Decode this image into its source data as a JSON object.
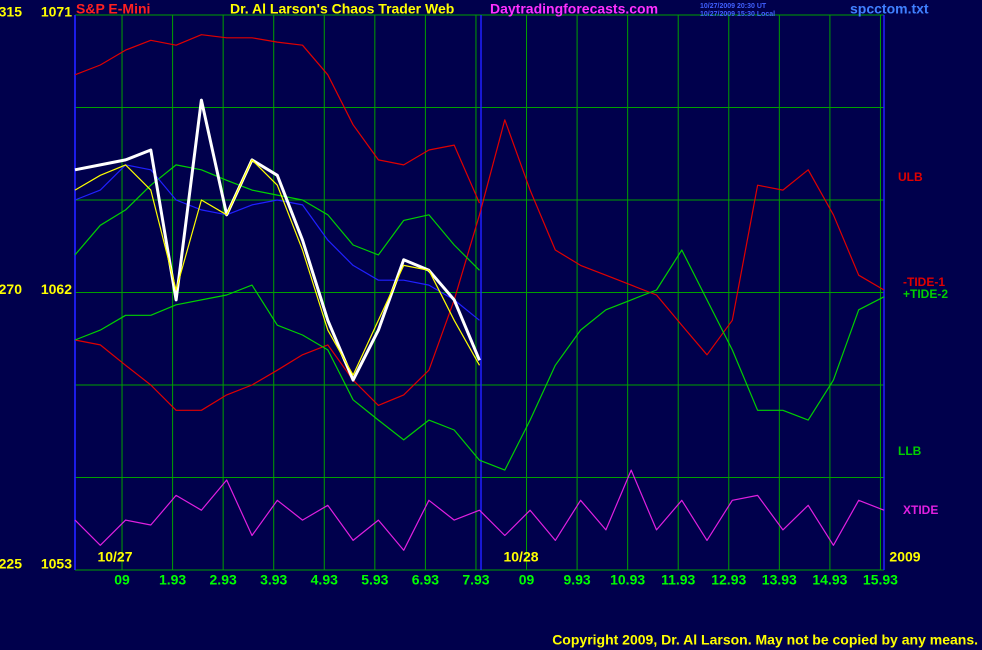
{
  "header": {
    "symbol": "S&P E-Mini",
    "title": "Dr. Al Larson's Chaos Trader Web",
    "site": "Daytradingforecasts.com",
    "timestamp_ut": "10/27/2009 20:30 UT",
    "timestamp_local": "10/27/2009 15:30 Local",
    "file": "spcctom.txt"
  },
  "footer": "Copyright 2009, Dr. Al Larson. May not be copied by any means.",
  "chart_data": {
    "type": "line",
    "x": [
      0,
      0.5,
      1,
      1.5,
      2,
      2.5,
      3,
      3.5,
      4,
      4.5,
      5,
      5.5,
      6,
      6.5,
      7,
      7.5,
      8,
      8.5,
      9,
      9.5,
      10,
      10.5,
      11,
      11.5,
      12,
      12.5,
      13,
      13.5,
      14,
      14.5,
      15,
      15.5,
      16
    ],
    "xlim": [
      0,
      16
    ],
    "xticks": [
      {
        "value": 0.93,
        "label": "09"
      },
      1.93,
      2.93,
      3.93,
      4.93,
      5.93,
      6.93,
      7.93,
      {
        "value": 8.93,
        "label": "09"
      },
      9.93,
      10.93,
      11.93,
      12.93,
      13.93,
      14.93,
      15.93
    ],
    "dates": [
      {
        "value": 0,
        "label": "10/27"
      },
      {
        "value": 8.03,
        "label": "10/28"
      }
    ],
    "year_label": "2009",
    "ylim": [
      225,
      315
    ],
    "yticks": [
      225,
      270,
      315
    ],
    "ygrid": [
      240,
      255,
      285,
      300
    ],
    "y2lim": [
      1053,
      1071
    ],
    "y2ticks": [
      1053,
      1062,
      1071
    ],
    "grid": true,
    "series": [
      {
        "name": "ULB",
        "color": "#e00000",
        "values": [
          305.3,
          306.9,
          309.3,
          310.9,
          310.1,
          311.8,
          311.3,
          311.3,
          310.6,
          310.1,
          305.3,
          297.2,
          291.5,
          290.7,
          293.1,
          293.9,
          284.5,
          null,
          null,
          null,
          null,
          null,
          null,
          null,
          null,
          null,
          null,
          null,
          null,
          null,
          null,
          null,
          null
        ]
      },
      {
        "name": "-TIDE-1",
        "color": "#e00000",
        "values": [
          262.3,
          261.5,
          258.2,
          255.0,
          250.9,
          250.9,
          253.4,
          255.0,
          257.4,
          259.9,
          261.5,
          255.8,
          251.7,
          253.4,
          257.4,
          268.8,
          282.6,
          298.0,
          286.6,
          276.9,
          274.4,
          272.8,
          271.2,
          269.6,
          264.7,
          259.9,
          265.5,
          287.4,
          286.6,
          289.9,
          282.6,
          272.8,
          270.4
        ]
      },
      {
        "name": "+TIDE-2",
        "color": "#00d000",
        "values": [
          262.3,
          263.9,
          266.3,
          266.3,
          268.0,
          268.8,
          269.6,
          271.2,
          264.7,
          263.1,
          260.7,
          252.6,
          249.3,
          246.1,
          249.3,
          247.7,
          242.8,
          241.2,
          249.3,
          258.2,
          263.9,
          267.2,
          268.8,
          270.4,
          276.9,
          268.8,
          260.7,
          250.9,
          250.9,
          249.3,
          255.8,
          267.2,
          269.3
        ]
      },
      {
        "name": "LLB",
        "color": "#00d000",
        "values": [
          276.1,
          280.9,
          283.4,
          287.4,
          290.7,
          289.9,
          288.2,
          286.6,
          285.8,
          285.0,
          282.6,
          277.7,
          276.1,
          281.7,
          282.6,
          277.7,
          273.6,
          null,
          null,
          null,
          null,
          null,
          null,
          null,
          null,
          null,
          null,
          null,
          null,
          null,
          null,
          null,
          null
        ]
      },
      {
        "name": "XTIDE",
        "color": "#e020e0",
        "values": [
          233.1,
          229.0,
          233.1,
          232.3,
          237.1,
          234.7,
          239.6,
          230.6,
          236.3,
          233.1,
          235.5,
          229.8,
          233.1,
          228.2,
          236.3,
          233.1,
          234.7,
          230.6,
          234.7,
          229.8,
          236.3,
          231.5,
          241.2,
          231.5,
          236.3,
          229.8,
          236.3,
          237.1,
          231.5,
          235.5,
          229.0,
          236.3,
          234.7
        ]
      },
      {
        "color": "#2020ff",
        "values": [
          285.0,
          286.6,
          290.7,
          289.9,
          285.0,
          283.4,
          282.6,
          284.2,
          285.0,
          284.2,
          278.5,
          274.4,
          272.0,
          272.0,
          271.2,
          268.8,
          265.5,
          null,
          null,
          null,
          null,
          null,
          null,
          null,
          null,
          null,
          null,
          null,
          null,
          null,
          null,
          null,
          null
        ]
      },
      {
        "color": "#ffffff",
        "values": [
          289.9,
          290.7,
          291.5,
          293.1,
          268.8,
          301.2,
          282.6,
          291.5,
          289.0,
          278.5,
          265.5,
          255.8,
          263.9,
          275.3,
          273.6,
          268.8,
          259.0,
          null,
          null,
          null,
          null,
          null,
          null,
          null,
          null,
          null,
          null,
          null,
          null,
          null,
          null,
          null,
          null
        ]
      },
      {
        "color": "#ffff00",
        "values": [
          286.6,
          289.0,
          290.7,
          286.6,
          270.4,
          285.0,
          282.6,
          291.5,
          287.4,
          276.9,
          263.9,
          256.6,
          265.5,
          274.4,
          273.6,
          265.5,
          258.2,
          null,
          null,
          null,
          null,
          null,
          null,
          null,
          null,
          null,
          null,
          null,
          null,
          null,
          null,
          null,
          null
        ]
      }
    ]
  }
}
